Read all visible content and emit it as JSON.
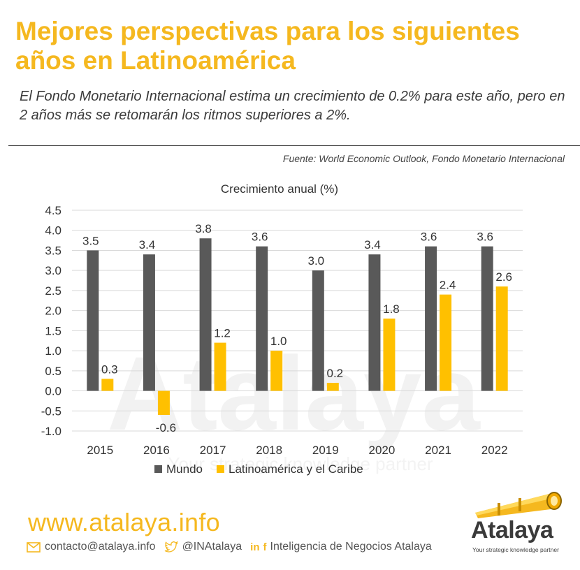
{
  "header": {
    "title": "Mejores perspectivas para los siguientes años en Latinoamérica",
    "subtitle": "El Fondo Monetario Internacional estima un crecimiento de 0.2% para este año, pero en 2 años más se retomarán los ritmos superiores a 2%.",
    "source": "Fuente: World Economic Outlook, Fondo Monetario Internacional"
  },
  "chart_data": {
    "type": "bar",
    "title": "Crecimiento anual (%)",
    "categories": [
      "2015",
      "2016",
      "2017",
      "2018",
      "2019",
      "2020",
      "2021",
      "2022"
    ],
    "series": [
      {
        "name": "Mundo",
        "color": "#595959",
        "values": [
          3.5,
          3.4,
          3.8,
          3.6,
          3.0,
          3.4,
          3.6,
          3.6
        ]
      },
      {
        "name": "Latinoamérica y el Caribe",
        "color": "#ffc000",
        "values": [
          0.3,
          -0.6,
          1.2,
          1.0,
          0.2,
          1.8,
          2.4,
          2.6
        ]
      }
    ],
    "ylim": [
      -1.0,
      4.5
    ],
    "yticks": [
      "4.5",
      "4.0",
      "3.5",
      "3.0",
      "2.5",
      "2.0",
      "1.5",
      "1.0",
      "0.5",
      "0.0",
      "-0.5",
      "-1.0"
    ],
    "data_labels": [
      [
        "3.5",
        "3.4",
        "3.8",
        "3.6",
        "3.0",
        "3.4",
        "3.6",
        "3.6"
      ],
      [
        "0.3",
        "-0.6",
        "1.2",
        "1.0",
        "0.2",
        "1.8",
        "2.4",
        "2.6"
      ]
    ],
    "legend_position": "bottom",
    "grid": true
  },
  "watermark": {
    "text": "Atalaya",
    "tagline": "Your strategic knowledge partner"
  },
  "footer": {
    "website": "www.atalaya.info",
    "email": "contacto@atalaya.info",
    "twitter": "@INAtalaya",
    "social_li": "in",
    "social_fb": "f",
    "company": "Inteligencia de Negocios Atalaya",
    "logo_name": "Atalaya",
    "logo_tagline": "Your strategic knowledge partner",
    "accent_color": "#f5b81f"
  }
}
